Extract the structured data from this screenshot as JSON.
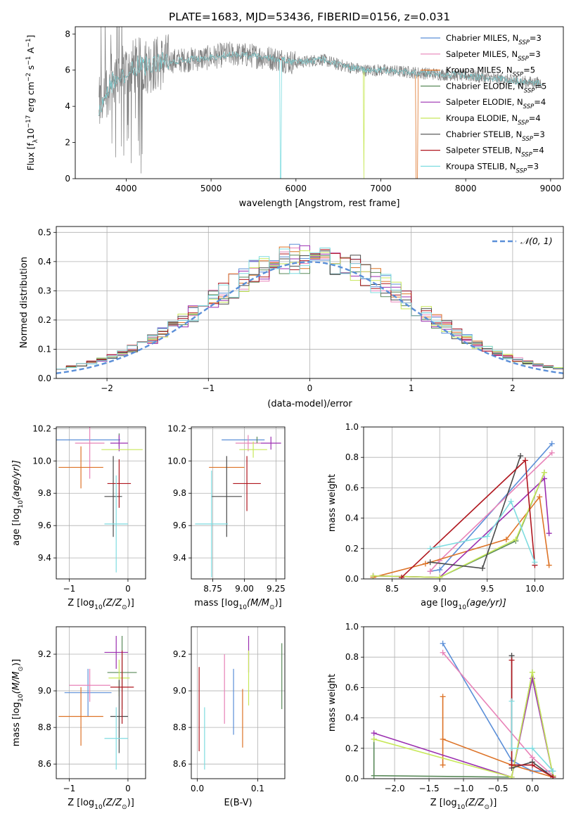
{
  "figure_title": "PLATE=1683, MJD=53436, FIBERID=0156, z=0.031",
  "colors": {
    "Chabrier MILES": "#5b8fd8",
    "Salpeter MILES": "#e883b8",
    "Kroupa MILES": "#dd7327",
    "Chabrier ELODIE": "#5a8a5a",
    "Salpeter ELODIE": "#9b2fb0",
    "Kroupa ELODIE": "#c8e85a",
    "Chabrier STELIB": "#4a4a4a",
    "Salpeter STELIB": "#b0171f",
    "Kroupa STELIB": "#7fdce0",
    "data": "#808080",
    "normal": "#5b8fd8"
  },
  "chart_data": [
    {
      "type": "line",
      "xlabel": "wavelength [Angstrom, rest frame]",
      "ylabel_main": "Flux [f",
      "ylabel_sub": "λ",
      "ylabel_rest": "10",
      "ylabel_exp1": "−17",
      "ylabel_mid": " erg cm",
      "ylabel_exp2": "−2",
      "ylabel_mid2": " s",
      "ylabel_exp3": "−1",
      "ylabel_end": " A",
      "ylabel_exp4": "−1",
      "ylabel_close": "]",
      "xlim": [
        3400,
        9150
      ],
      "ylim": [
        0,
        8.4
      ],
      "xticks": [
        "4000",
        "5000",
        "6000",
        "7000",
        "8000",
        "9000"
      ],
      "xtick_values": [
        4000,
        5000,
        6000,
        7000,
        8000,
        9000
      ],
      "yticks": [
        "0",
        "2",
        "4",
        "6",
        "8"
      ],
      "ytick_values": [
        0,
        2,
        4,
        6,
        8
      ],
      "legend_placement": "top-right",
      "legend": [
        {
          "name": "Chabrier MILES, N",
          "sub": "SSP",
          "suffix": "=3",
          "key": "Chabrier MILES"
        },
        {
          "name": "Salpeter MILES, N",
          "sub": "SSP",
          "suffix": "=3",
          "key": "Salpeter MILES"
        },
        {
          "name": "Kroupa MILES, N",
          "sub": "SSP",
          "suffix": "=5",
          "key": "Kroupa MILES"
        },
        {
          "name": "Chabrier ELODIE, N",
          "sub": "SSP",
          "suffix": "=5",
          "key": "Chabrier ELODIE"
        },
        {
          "name": "Salpeter ELODIE, N",
          "sub": "SSP",
          "suffix": "=4",
          "key": "Salpeter ELODIE"
        },
        {
          "name": "Kroupa ELODIE, N",
          "sub": "SSP",
          "suffix": "=4",
          "key": "Kroupa ELODIE"
        },
        {
          "name": "Chabrier STELIB, N",
          "sub": "SSP",
          "suffix": "=3",
          "key": "Chabrier STELIB"
        },
        {
          "name": "Salpeter STELIB, N",
          "sub": "SSP",
          "suffix": "=4",
          "key": "Salpeter STELIB"
        },
        {
          "name": "Kroupa STELIB, N",
          "sub": "SSP",
          "suffix": "=3",
          "key": "Kroupa STELIB"
        }
      ],
      "spectrum_continuum": [
        [
          3680,
          4.0
        ],
        [
          3800,
          5.2
        ],
        [
          3900,
          5.6
        ],
        [
          4000,
          5.9
        ],
        [
          4100,
          6.2
        ],
        [
          4300,
          6.3
        ],
        [
          4500,
          6.5
        ],
        [
          4800,
          6.6
        ],
        [
          5000,
          6.7
        ],
        [
          5200,
          6.9
        ],
        [
          5500,
          6.8
        ],
        [
          5800,
          6.6
        ],
        [
          6000,
          6.4
        ],
        [
          6300,
          6.6
        ],
        [
          6500,
          6.3
        ],
        [
          6800,
          6.0
        ],
        [
          7000,
          6.0
        ],
        [
          7300,
          5.9
        ],
        [
          7600,
          5.8
        ],
        [
          8000,
          5.7
        ],
        [
          8400,
          5.5
        ],
        [
          8800,
          5.3
        ],
        [
          8900,
          5.3
        ]
      ],
      "spectrum_xrange": [
        3680,
        8900
      ],
      "model_dropouts": [
        {
          "key": "Kroupa STELIB",
          "x": 5820
        },
        {
          "key": "Kroupa ELODIE",
          "x": 6800
        },
        {
          "key": "Kroupa MILES",
          "x": 7420
        }
      ]
    },
    {
      "type": "histogram",
      "xlabel": "(data-model)/error",
      "ylabel": "Normed distribution",
      "xlim": [
        -2.5,
        2.5
      ],
      "ylim": [
        0,
        0.52
      ],
      "xticks": [
        "−2",
        "−1",
        "0",
        "1",
        "2"
      ],
      "xtick_values": [
        -2,
        -1,
        0,
        1,
        2
      ],
      "yticks": [
        "0.0",
        "0.1",
        "0.2",
        "0.3",
        "0.4",
        "0.5"
      ],
      "ytick_values": [
        0,
        0.1,
        0.2,
        0.3,
        0.4,
        0.5
      ],
      "bin_width": 0.1,
      "legend": {
        "label": "𝒩(0, 1)",
        "placement": "top-right"
      },
      "series_keys": [
        "Chabrier MILES",
        "Salpeter MILES",
        "Kroupa MILES",
        "Chabrier ELODIE",
        "Salpeter ELODIE",
        "Kroupa ELODIE",
        "Chabrier STELIB",
        "Salpeter STELIB",
        "Kroupa STELIB"
      ]
    },
    {
      "type": "scatter",
      "name": "age-vs-Z",
      "xlabel": "Z [log",
      "xlabel_sub": "10",
      "xlabel_rest": "(Z/Z",
      "xlabel_sub2": "⊙",
      "xlabel_end": ")]",
      "ylabel": "age  [log",
      "ylabel_sub": "10",
      "ylabel_rest": "(age/yr)]",
      "xlim": [
        -1.22,
        0.3
      ],
      "ylim": [
        9.27,
        10.21
      ],
      "xticks": [
        "−1",
        "0"
      ],
      "xtick_values": [
        -1,
        0
      ],
      "yticks": [
        "9.4",
        "9.6",
        "9.8",
        "10.0",
        "10.2"
      ],
      "ytick_values": [
        9.4,
        9.6,
        9.8,
        10.0,
        10.2
      ],
      "points": [
        {
          "key": "Chabrier MILES",
          "x": -0.68,
          "y": 10.13,
          "xerr": 0.55,
          "yerr": 0.0
        },
        {
          "key": "Salpeter MILES",
          "x": -0.65,
          "y": 10.11,
          "xerr": 0.25,
          "yerr": 0.22
        },
        {
          "key": "Kroupa MILES",
          "x": -0.8,
          "y": 9.96,
          "xerr": 0.38,
          "yerr": 0.13
        },
        {
          "key": "Chabrier ELODIE",
          "x": -0.15,
          "y": 10.13,
          "xerr": 0.0,
          "yerr": 0.04
        },
        {
          "key": "Salpeter ELODIE",
          "x": -0.15,
          "y": 10.11,
          "xerr": 0.15,
          "yerr": 0.05
        },
        {
          "key": "Kroupa ELODIE",
          "x": -0.1,
          "y": 10.07,
          "xerr": 0.35,
          "yerr": 0.0
        },
        {
          "key": "Chabrier STELIB",
          "x": -0.25,
          "y": 9.78,
          "xerr": 0.15,
          "yerr": 0.25
        },
        {
          "key": "Salpeter STELIB",
          "x": -0.15,
          "y": 9.86,
          "xerr": 0.2,
          "yerr": 0.15
        },
        {
          "key": "Kroupa STELIB",
          "x": -0.2,
          "y": 9.61,
          "xerr": 0.2,
          "yerr": 0.3
        }
      ]
    },
    {
      "type": "scatter",
      "name": "age-vs-mass",
      "xlabel": "mass [log",
      "xlabel_sub": "10",
      "xlabel_rest": "(M/M",
      "xlabel_sub2": "⊙",
      "xlabel_end": ")]",
      "xlim": [
        8.58,
        9.32
      ],
      "ylim": [
        9.27,
        10.21
      ],
      "xticks": [
        "8.75",
        "9.00",
        "9.25"
      ],
      "xtick_values": [
        8.75,
        9.0,
        9.25
      ],
      "yticks": [
        "9.4",
        "9.6",
        "9.8",
        "10.0",
        "10.2"
      ],
      "ytick_values": [
        9.4,
        9.6,
        9.8,
        10.0,
        10.2
      ],
      "points": [
        {
          "key": "Chabrier MILES",
          "x": 8.99,
          "y": 10.13,
          "xerr": 0.17,
          "yerr": 0.0
        },
        {
          "key": "Salpeter MILES",
          "x": 9.03,
          "y": 10.11,
          "xerr": 0.1,
          "yerr": 0.05
        },
        {
          "key": "Kroupa MILES",
          "x": 8.86,
          "y": 9.96,
          "xerr": 0.14,
          "yerr": 0.0
        },
        {
          "key": "Chabrier ELODIE",
          "x": 9.1,
          "y": 10.13,
          "xerr": 0.0,
          "yerr": 0.02
        },
        {
          "key": "Salpeter ELODIE",
          "x": 9.21,
          "y": 10.11,
          "xerr": 0.08,
          "yerr": 0.04
        },
        {
          "key": "Kroupa ELODIE",
          "x": 9.07,
          "y": 10.07,
          "xerr": 0.11,
          "yerr": 0.05
        },
        {
          "key": "Chabrier STELIB",
          "x": 8.86,
          "y": 9.78,
          "xerr": 0.12,
          "yerr": 0.25
        },
        {
          "key": "Salpeter STELIB",
          "x": 9.02,
          "y": 9.86,
          "xerr": 0.11,
          "yerr": 0.17
        },
        {
          "key": "Kroupa STELIB",
          "x": 8.74,
          "y": 9.61,
          "xerr": 0.13,
          "yerr": 0.33
        }
      ]
    },
    {
      "type": "line",
      "name": "mass-weight-vs-age",
      "xlabel": "age  [log",
      "xlabel_sub": "10",
      "xlabel_rest": "(age/yr)]",
      "ylabel": "mass weight",
      "xlim": [
        8.2,
        10.3
      ],
      "ylim": [
        0,
        1.0
      ],
      "xticks": [
        "8.5",
        "9.0",
        "9.5",
        "10.0"
      ],
      "xtick_values": [
        8.5,
        9.0,
        9.5,
        10.0
      ],
      "yticks": [
        "0.0",
        "0.2",
        "0.4",
        "0.6",
        "0.8",
        "1.0"
      ],
      "ytick_values": [
        0,
        0.2,
        0.4,
        0.6,
        0.8,
        1.0
      ],
      "series": [
        {
          "key": "Chabrier MILES",
          "x": [
            8.9,
            9.0,
            10.18
          ],
          "y": [
            0.05,
            0.06,
            0.89
          ]
        },
        {
          "key": "Salpeter MILES",
          "x": [
            8.9,
            9.0,
            10.18
          ],
          "y": [
            0.05,
            0.12,
            0.83
          ]
        },
        {
          "key": "Kroupa MILES",
          "x": [
            8.3,
            8.85,
            9.7,
            10.05,
            10.15
          ],
          "y": [
            0.01,
            0.1,
            0.26,
            0.54,
            0.09
          ]
        },
        {
          "key": "Chabrier ELODIE",
          "x": [
            8.3,
            9.0,
            9.8,
            10.1
          ],
          "y": [
            0.02,
            0.01,
            0.25,
            0.7
          ]
        },
        {
          "key": "Salpeter ELODIE",
          "x": [
            8.3,
            9.0,
            10.1,
            10.15
          ],
          "y": [
            0.02,
            0.01,
            0.66,
            0.3
          ]
        },
        {
          "key": "Kroupa ELODIE",
          "x": [
            8.3,
            9.0,
            9.8,
            10.1
          ],
          "y": [
            0.02,
            0.01,
            0.26,
            0.7
          ]
        },
        {
          "key": "Chabrier STELIB",
          "x": [
            8.9,
            9.45,
            9.85
          ],
          "y": [
            0.11,
            0.07,
            0.81
          ]
        },
        {
          "key": "Salpeter STELIB",
          "x": [
            8.6,
            9.9,
            10.0
          ],
          "y": [
            0.01,
            0.78,
            0.09
          ]
        },
        {
          "key": "Kroupa STELIB",
          "x": [
            8.9,
            9.5,
            9.75,
            10.0
          ],
          "y": [
            0.2,
            0.28,
            0.51,
            0.11
          ]
        }
      ]
    },
    {
      "type": "scatter",
      "name": "mass-vs-Z",
      "xlabel": "Z [log",
      "xlabel_sub": "10",
      "xlabel_rest": "(Z/Z",
      "xlabel_sub2": "⊙",
      "xlabel_end": ")]",
      "ylabel": "mass [log",
      "ylabel_sub": "10",
      "ylabel_rest": "(M/M",
      "ylabel_sub2": "⊙",
      "ylabel_end": ")]",
      "xlim": [
        -1.22,
        0.3
      ],
      "ylim": [
        8.52,
        9.35
      ],
      "xticks": [
        "−1",
        "0"
      ],
      "xtick_values": [
        -1,
        0
      ],
      "yticks": [
        "8.6",
        "8.8",
        "9.0",
        "9.2"
      ],
      "ytick_values": [
        8.6,
        8.8,
        9.0,
        9.2
      ],
      "points": [
        {
          "key": "Chabrier MILES",
          "x": -0.68,
          "y": 8.99,
          "xerr": 0.4,
          "yerr": 0.13
        },
        {
          "key": "Salpeter MILES",
          "x": -0.65,
          "y": 9.03,
          "xerr": 0.35,
          "yerr": 0.09
        },
        {
          "key": "Kroupa MILES",
          "x": -0.8,
          "y": 8.86,
          "xerr": 0.38,
          "yerr": 0.16
        },
        {
          "key": "Chabrier ELODIE",
          "x": -0.1,
          "y": 9.1,
          "xerr": 0.25,
          "yerr": 0.2
        },
        {
          "key": "Salpeter ELODIE",
          "x": -0.2,
          "y": 9.21,
          "xerr": 0.2,
          "yerr": 0.09
        },
        {
          "key": "Kroupa ELODIE",
          "x": -0.15,
          "y": 9.07,
          "xerr": 0.18,
          "yerr": 0.1
        },
        {
          "key": "Chabrier STELIB",
          "x": -0.15,
          "y": 8.86,
          "xerr": 0.15,
          "yerr": 0.2
        },
        {
          "key": "Salpeter STELIB",
          "x": -0.1,
          "y": 9.02,
          "xerr": 0.2,
          "yerr": 0.2
        },
        {
          "key": "Kroupa STELIB",
          "x": -0.2,
          "y": 8.74,
          "xerr": 0.2,
          "yerr": 0.17
        }
      ]
    },
    {
      "type": "scatter",
      "name": "mass-vs-EBV",
      "xlabel": "E(B-V)",
      "xlim": [
        -0.01,
        0.145
      ],
      "ylim": [
        8.52,
        9.35
      ],
      "xticks": [
        "0.0",
        "0.1"
      ],
      "xtick_values": [
        0.0,
        0.1
      ],
      "yticks": [
        "8.6",
        "8.8",
        "9.0",
        "9.2"
      ],
      "ytick_values": [
        8.6,
        8.8,
        9.0,
        9.2
      ],
      "points": [
        {
          "key": "Salpeter STELIB",
          "x": 0.003,
          "y": 8.9,
          "xerr": 0.0,
          "yerr": 0.23
        },
        {
          "key": "Kroupa STELIB",
          "x": 0.012,
          "y": 8.74,
          "xerr": 0.0,
          "yerr": 0.17
        },
        {
          "key": "Salpeter MILES",
          "x": 0.045,
          "y": 9.01,
          "xerr": 0.0,
          "yerr": 0.19
        },
        {
          "key": "Chabrier MILES",
          "x": 0.06,
          "y": 8.94,
          "xerr": 0.0,
          "yerr": 0.18
        },
        {
          "key": "Kroupa MILES",
          "x": 0.075,
          "y": 8.85,
          "xerr": 0.0,
          "yerr": 0.16
        },
        {
          "key": "Salpeter ELODIE",
          "x": 0.085,
          "y": 9.2,
          "xerr": 0.0,
          "yerr": 0.1
        },
        {
          "key": "Kroupa ELODIE",
          "x": 0.085,
          "y": 9.07,
          "xerr": 0.0,
          "yerr": 0.15
        },
        {
          "key": "Chabrier ELODIE",
          "x": 0.14,
          "y": 9.08,
          "xerr": 0.0,
          "yerr": 0.18
        }
      ]
    },
    {
      "type": "line",
      "name": "mass-weight-vs-Z",
      "xlabel": "Z [log",
      "xlabel_sub": "10",
      "xlabel_rest": "(Z/Z",
      "xlabel_sub2": "⊙",
      "xlabel_end": ")]",
      "ylabel": "mass weight",
      "xlim": [
        -2.45,
        0.45
      ],
      "ylim": [
        0,
        1.0
      ],
      "xticks": [
        "−2.0",
        "−1.5",
        "−1.0",
        "−0.5",
        "0.0"
      ],
      "xtick_values": [
        -2.0,
        -1.5,
        -1.0,
        -0.5,
        0.0
      ],
      "yticks": [
        "0.0",
        "0.2",
        "0.4",
        "0.6",
        "0.8",
        "1.0"
      ],
      "ytick_values": [
        0,
        0.2,
        0.4,
        0.6,
        0.8,
        1.0
      ],
      "series": [
        {
          "key": "Chabrier MILES",
          "x": [
            -1.3,
            -0.3,
            0.0,
            0.3
          ],
          "y": [
            0.89,
            0.12,
            0.05,
            0.05
          ]
        },
        {
          "key": "Salpeter MILES",
          "x": [
            -1.3,
            0.0,
            0.3
          ],
          "y": [
            0.83,
            0.14,
            0.02
          ]
        },
        {
          "key": "Kroupa MILES",
          "x": [
            -1.3,
            -1.3,
            -1.3,
            -0.3,
            0.3
          ],
          "y": [
            0.54,
            0.09,
            0.26,
            0.09,
            0.01
          ]
        },
        {
          "key": "Chabrier ELODIE",
          "x": [
            -2.3,
            -2.3,
            -0.3,
            0.0,
            0.3
          ],
          "y": [
            0.26,
            0.02,
            0.01,
            0.7,
            0.02
          ]
        },
        {
          "key": "Salpeter ELODIE",
          "x": [
            -2.3,
            -0.3,
            0.0,
            0.3
          ],
          "y": [
            0.3,
            0.01,
            0.66,
            0.02
          ]
        },
        {
          "key": "Kroupa ELODIE",
          "x": [
            -2.3,
            -0.3,
            0.0,
            0.3
          ],
          "y": [
            0.26,
            0.01,
            0.7,
            0.02
          ]
        },
        {
          "key": "Chabrier STELIB",
          "x": [
            -0.3,
            -0.3,
            0.0,
            0.3
          ],
          "y": [
            0.81,
            0.07,
            0.11,
            0.01
          ]
        },
        {
          "key": "Salpeter STELIB",
          "x": [
            -0.3,
            -0.3,
            0.0,
            0.3
          ],
          "y": [
            0.78,
            0.09,
            0.09,
            0.01
          ]
        },
        {
          "key": "Kroupa STELIB",
          "x": [
            -0.3,
            -0.3,
            0.0,
            0.3
          ],
          "y": [
            0.51,
            0.2,
            0.2,
            0.05
          ]
        }
      ]
    }
  ]
}
